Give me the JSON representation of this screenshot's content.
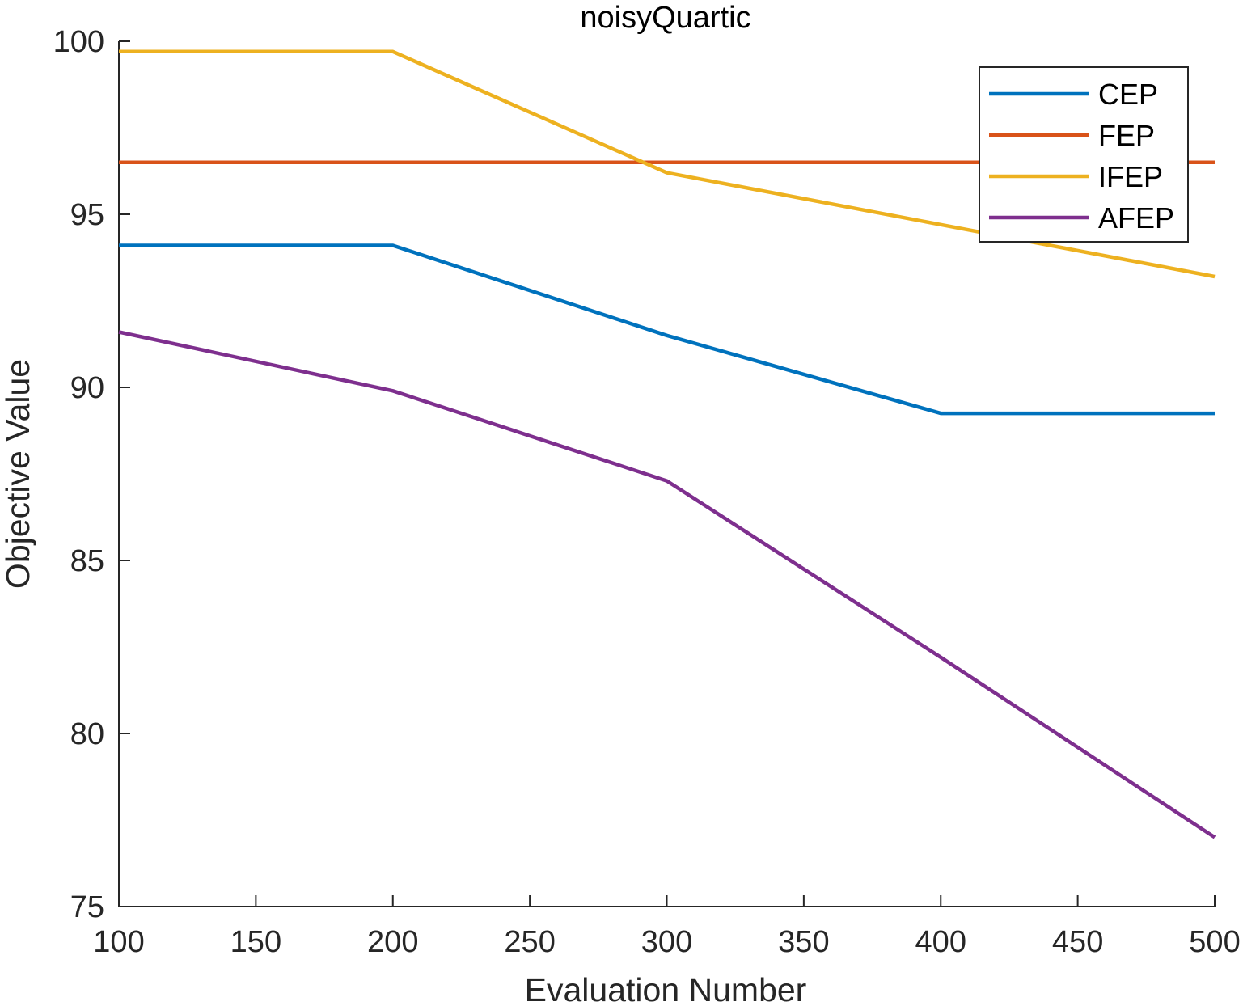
{
  "chart_data": {
    "type": "line",
    "title": "noisyQuartic",
    "xlabel": "Evaluation Number",
    "ylabel": "Objective Value",
    "x": [
      100,
      200,
      300,
      400,
      500
    ],
    "xlim": [
      100,
      500
    ],
    "ylim": [
      75,
      100
    ],
    "xticks": [
      "100",
      "150",
      "200",
      "250",
      "300",
      "350",
      "400",
      "450",
      "500"
    ],
    "yticks": [
      "75",
      "80",
      "85",
      "90",
      "95",
      "100"
    ],
    "grid": false,
    "legend_position": "top-right",
    "series": [
      {
        "name": "CEP",
        "color": "#0072BD",
        "values": [
          94.1,
          94.1,
          91.5,
          89.25,
          89.25
        ]
      },
      {
        "name": "FEP",
        "color": "#D95319",
        "values": [
          96.5,
          96.5,
          96.5,
          96.5,
          96.5
        ]
      },
      {
        "name": "IFEP",
        "color": "#EDB120",
        "values": [
          99.7,
          99.7,
          96.2,
          94.7,
          93.2
        ]
      },
      {
        "name": "AFEP",
        "color": "#7E2F8E",
        "values": [
          91.6,
          89.9,
          87.3,
          82.2,
          77.0
        ]
      }
    ]
  }
}
